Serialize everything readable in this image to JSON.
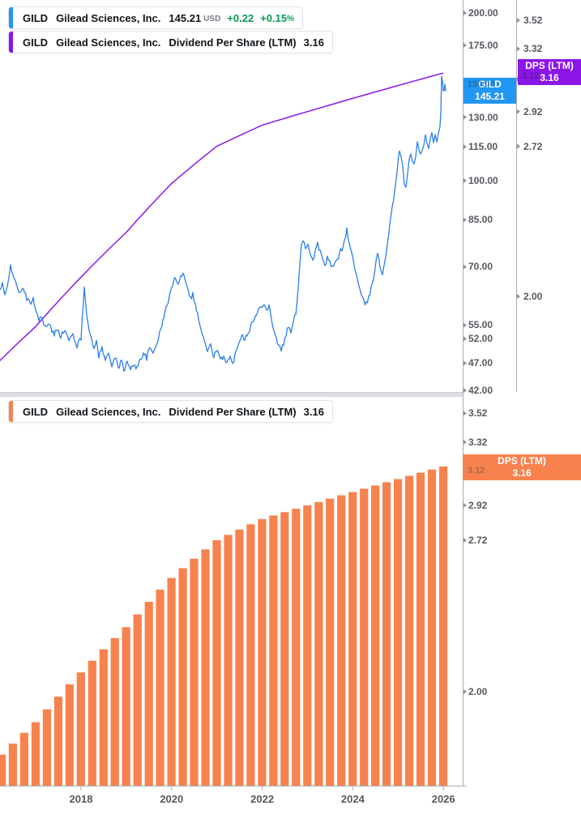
{
  "colors": {
    "blue_line": "#2b7fe8",
    "blue_badge": "#2196f3",
    "purple": "#8c16e8",
    "orange": "#f7824e",
    "green": "#089950",
    "axis_text": "#55585f",
    "axis_line": "#a8acb4",
    "divider": "#dbdde2",
    "legend_border": "#e0e3eb"
  },
  "top_legend": [
    {
      "symbol": "GILD",
      "company": "Gilead Sciences, Inc.",
      "price": "145.21",
      "currency": "USD",
      "change_abs": "+0.22",
      "change_pct": "+0.15",
      "pct_sign": "%"
    },
    {
      "symbol": "GILD",
      "company": "Gilead Sciences, Inc.",
      "metric": "Dividend Per Share (LTM)",
      "value": "3.16"
    }
  ],
  "bottom_legend": {
    "symbol": "GILD",
    "company": "Gilead Sciences, Inc.",
    "metric": "Dividend Per Share (LTM)",
    "value": "3.16"
  },
  "top_panel": {
    "price_ticks": [
      "200.00",
      "175.00",
      "150.00",
      "130.00",
      "115.00",
      "100.00",
      "85.00",
      "70.00",
      "55.00",
      "52.00",
      "47.00",
      "42.00"
    ],
    "dps_ticks": [
      "3.52",
      "3.32",
      "3.12",
      "2.92",
      "2.72",
      "2.00"
    ],
    "price_badge": {
      "line1": "GILD",
      "line2": "145.21"
    },
    "dps_badge": {
      "line1": "DPS (LTM)",
      "line2": "3.16"
    },
    "hidden_price_label": "150.00",
    "hidden_dps_label": "3.12"
  },
  "bottom_panel": {
    "dps_ticks": [
      "3.52",
      "3.32",
      "3.12",
      "2.92",
      "2.72",
      "2.00"
    ],
    "dps_badge": {
      "line1": "DPS (LTM)",
      "line2": "3.16"
    },
    "hidden_dps_label": "3.12"
  },
  "x_axis": {
    "labels": [
      "2018",
      "2020",
      "2022",
      "2024",
      "2026"
    ]
  },
  "chart_data": [
    {
      "type": "line",
      "name": "GILD share price",
      "pane": "top",
      "unit": "USD",
      "y_scale": "log",
      "last_value": 145.21,
      "change_abs": 0.22,
      "change_pct": 0.15,
      "y_ticks": [
        200,
        175,
        150,
        130,
        115,
        100,
        85,
        70,
        55,
        52,
        47,
        42
      ],
      "x_years": [
        2018,
        2020,
        2022,
        2024,
        2026
      ],
      "points_x_price": [
        [
          0,
          63.5
        ],
        [
          3,
          65
        ],
        [
          6,
          62
        ],
        [
          9,
          64.5
        ],
        [
          13,
          71
        ],
        [
          16,
          67
        ],
        [
          20,
          65.5
        ],
        [
          25,
          62.5
        ],
        [
          29,
          64
        ],
        [
          33,
          61.5
        ],
        [
          37,
          60
        ],
        [
          41,
          61.5
        ],
        [
          45,
          58
        ],
        [
          48,
          56.2
        ],
        [
          51,
          57.5
        ],
        [
          54,
          55
        ],
        [
          58,
          54.3
        ],
        [
          61,
          55.5
        ],
        [
          64,
          53.5
        ],
        [
          67,
          53
        ],
        [
          71,
          54.5
        ],
        [
          75,
          52.5
        ],
        [
          80,
          54
        ],
        [
          85,
          51.5
        ],
        [
          90,
          53
        ],
        [
          95,
          50.5
        ],
        [
          100,
          52
        ],
        [
          104,
          64.5
        ],
        [
          107,
          58
        ],
        [
          110,
          54
        ],
        [
          113,
          51.5
        ],
        [
          116,
          50
        ],
        [
          119,
          51.5
        ],
        [
          122,
          48.5
        ],
        [
          126,
          50
        ],
        [
          130,
          47.5
        ],
        [
          134,
          49
        ],
        [
          138,
          46.8
        ],
        [
          142,
          48.2
        ],
        [
          146,
          46
        ],
        [
          150,
          47.5
        ],
        [
          153,
          45.8
        ],
        [
          157,
          47.2
        ],
        [
          161,
          45.6
        ],
        [
          165,
          47
        ],
        [
          169,
          46
        ],
        [
          173,
          47.8
        ],
        [
          177,
          49
        ],
        [
          181,
          48
        ],
        [
          185,
          50
        ],
        [
          189,
          49
        ],
        [
          193,
          51
        ],
        [
          197,
          53
        ],
        [
          201,
          56
        ],
        [
          205,
          59
        ],
        [
          209,
          62
        ],
        [
          213,
          65
        ],
        [
          217,
          67
        ],
        [
          220,
          65.5
        ],
        [
          223,
          67.5
        ],
        [
          227,
          68
        ],
        [
          229,
          66.5
        ],
        [
          232,
          64
        ],
        [
          235,
          61.5
        ],
        [
          238,
          62.5
        ],
        [
          241,
          60
        ],
        [
          244,
          57.5
        ],
        [
          248,
          54
        ],
        [
          252,
          51.5
        ],
        [
          256,
          49.5
        ],
        [
          260,
          50.5
        ],
        [
          264,
          48.5
        ],
        [
          268,
          49.5
        ],
        [
          272,
          47.5
        ],
        [
          276,
          48.5
        ],
        [
          280,
          47.2
        ],
        [
          284,
          48
        ],
        [
          287,
          46.8
        ],
        [
          290,
          48.5
        ],
        [
          294,
          51
        ],
        [
          298,
          53
        ],
        [
          302,
          52
        ],
        [
          306,
          53.5
        ],
        [
          310,
          55
        ],
        [
          314,
          56.5
        ],
        [
          318,
          58
        ],
        [
          322,
          59.5
        ],
        [
          326,
          60.5
        ],
        [
          329,
          58.5
        ],
        [
          332,
          59.5
        ],
        [
          335,
          56.5
        ],
        [
          338,
          54
        ],
        [
          341,
          52
        ],
        [
          344,
          50.5
        ],
        [
          347,
          49.5
        ],
        [
          350,
          51
        ],
        [
          353,
          53
        ],
        [
          356,
          54.5
        ],
        [
          359,
          53.5
        ],
        [
          362,
          55.5
        ],
        [
          365,
          58
        ],
        [
          368,
          64
        ],
        [
          370,
          71
        ],
        [
          372,
          77
        ],
        [
          374,
          78.5
        ],
        [
          377,
          76
        ],
        [
          380,
          76.8
        ],
        [
          383,
          74
        ],
        [
          386,
          72
        ],
        [
          389,
          74.5
        ],
        [
          392,
          77
        ],
        [
          395,
          74.5
        ],
        [
          398,
          72
        ],
        [
          401,
          70.5
        ],
        [
          404,
          72.5
        ],
        [
          407,
          71
        ],
        [
          410,
          70
        ],
        [
          413,
          70.5
        ],
        [
          416,
          72
        ],
        [
          419,
          74
        ],
        [
          422,
          75.5
        ],
        [
          425,
          78
        ],
        [
          428,
          81.5
        ],
        [
          431,
          77
        ],
        [
          434,
          74
        ],
        [
          437,
          71
        ],
        [
          440,
          67.5
        ],
        [
          443,
          64.5
        ],
        [
          446,
          62
        ],
        [
          449,
          60.5
        ],
        [
          452,
          60
        ],
        [
          455,
          61.5
        ],
        [
          458,
          64
        ],
        [
          461,
          67
        ],
        [
          464,
          72
        ],
        [
          466,
          74
        ],
        [
          469,
          70
        ],
        [
          472,
          68
        ],
        [
          475,
          72
        ],
        [
          478,
          77
        ],
        [
          481,
          83
        ],
        [
          484,
          89
        ],
        [
          487,
          96
        ],
        [
          490,
          104
        ],
        [
          493,
          113.8
        ],
        [
          495,
          111
        ],
        [
          497,
          105
        ],
        [
          499,
          99
        ],
        [
          501,
          97.5
        ],
        [
          503,
          102
        ],
        [
          505,
          109
        ],
        [
          507,
          112
        ],
        [
          509,
          108
        ],
        [
          511,
          106
        ],
        [
          513,
          111
        ],
        [
          515,
          117
        ],
        [
          517,
          114.5
        ],
        [
          519,
          111
        ],
        [
          521,
          113
        ],
        [
          523,
          117
        ],
        [
          525,
          120
        ],
        [
          527,
          117.7
        ],
        [
          529,
          115
        ],
        [
          531,
          118
        ],
        [
          533,
          121
        ],
        [
          535,
          118
        ],
        [
          537,
          119.7
        ],
        [
          539,
          117.7
        ],
        [
          541,
          121
        ],
        [
          543,
          125
        ],
        [
          544,
          133
        ],
        [
          545,
          154.5
        ],
        [
          546,
          151
        ],
        [
          547,
          146
        ],
        [
          548,
          144
        ],
        [
          549,
          148
        ],
        [
          550,
          146.5
        ],
        [
          551,
          145.21
        ]
      ]
    },
    {
      "type": "line",
      "name": "GILD Dividend Per Share (LTM)",
      "pane": "top",
      "color_key": "purple",
      "y_scale": "log",
      "last_value": 3.16,
      "y_ticks": [
        3.52,
        3.32,
        3.12,
        2.92,
        2.72,
        2.0
      ],
      "note": "same quarterly series as the bottom-pane bars"
    },
    {
      "type": "bar",
      "name": "GILD Dividend Per Share (LTM)",
      "pane": "bottom",
      "color_key": "orange",
      "y_scale": "log",
      "last_value": 3.16,
      "y_ticks": [
        3.52,
        3.32,
        3.12,
        2.92,
        2.72,
        2.0
      ],
      "categories": [
        "2015 Q4",
        "2016 Q1",
        "2016 Q2",
        "2016 Q3",
        "2016 Q4",
        "2017 Q1",
        "2017 Q2",
        "2017 Q3",
        "2017 Q4",
        "2018 Q1",
        "2018 Q2",
        "2018 Q3",
        "2018 Q4",
        "2019 Q1",
        "2019 Q2",
        "2019 Q3",
        "2019 Q4",
        "2020 Q1",
        "2020 Q2",
        "2020 Q3",
        "2020 Q4",
        "2021 Q1",
        "2021 Q2",
        "2021 Q3",
        "2021 Q4",
        "2022 Q1",
        "2022 Q2",
        "2022 Q3",
        "2022 Q4",
        "2023 Q1",
        "2023 Q2",
        "2023 Q3",
        "2023 Q4",
        "2024 Q1",
        "2024 Q2",
        "2024 Q3",
        "2024 Q4",
        "2025 Q1",
        "2025 Q2",
        "2025 Q3",
        "2025 Q4"
      ],
      "values": [
        1.72,
        1.76,
        1.8,
        1.84,
        1.88,
        1.93,
        1.98,
        2.03,
        2.08,
        2.13,
        2.18,
        2.23,
        2.28,
        2.34,
        2.4,
        2.46,
        2.52,
        2.57,
        2.62,
        2.67,
        2.72,
        2.75,
        2.78,
        2.81,
        2.84,
        2.86,
        2.88,
        2.9,
        2.92,
        2.94,
        2.96,
        2.98,
        3.0,
        3.02,
        3.04,
        3.06,
        3.08,
        3.1,
        3.12,
        3.14,
        3.16
      ]
    }
  ]
}
